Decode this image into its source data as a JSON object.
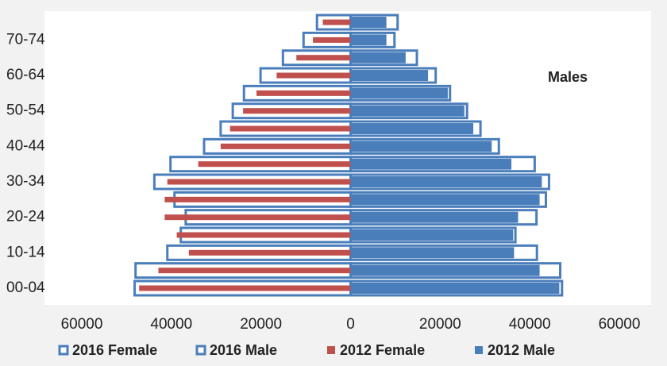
{
  "chart_data": {
    "type": "pyramid",
    "annotation": "Males",
    "categories": [
      "00-04",
      null,
      "10-14",
      null,
      "20-24",
      null,
      "30-34",
      null,
      "40-44",
      null,
      "50-54",
      null,
      "60-64",
      null,
      "70-74",
      null
    ],
    "series": [
      {
        "name": "2016 Female",
        "color": "#4a7ebb",
        "fill": "#ffffff",
        "values": [
          -48200,
          -48000,
          -40900,
          -37900,
          -36800,
          -39300,
          -43800,
          -40200,
          -32700,
          -29000,
          -26300,
          -23800,
          -20100,
          -15100,
          -10500,
          -7500
        ]
      },
      {
        "name": "2016 Male",
        "color": "#4a7ebb",
        "fill": "#ffffff",
        "values": [
          47200,
          46800,
          41600,
          36800,
          41500,
          43600,
          44300,
          41100,
          33100,
          29000,
          26000,
          22200,
          19000,
          14800,
          9800,
          10500
        ]
      },
      {
        "name": "2012 Female",
        "color": "#c0504d",
        "fill": "#c0504d",
        "values": [
          -47200,
          -42900,
          -36100,
          -38800,
          -41500,
          -41500,
          -40900,
          -34000,
          -29000,
          -26900,
          -24000,
          -21000,
          -16500,
          -12100,
          -8400,
          -6200
        ]
      },
      {
        "name": "2012 Male",
        "color": "#4a7ebb",
        "fill": "#4a7ebb",
        "values": [
          46600,
          42200,
          36500,
          36300,
          37400,
          42200,
          42700,
          35900,
          31500,
          27400,
          25400,
          21700,
          17300,
          12300,
          8000,
          8000
        ]
      }
    ],
    "xlim": [
      -60000,
      60000
    ],
    "xticks": [
      {
        "value": -60000,
        "label": "60000"
      },
      {
        "value": -40000,
        "label": "40000"
      },
      {
        "value": -20000,
        "label": "20000"
      },
      0,
      20000,
      40000,
      60000
    ]
  }
}
